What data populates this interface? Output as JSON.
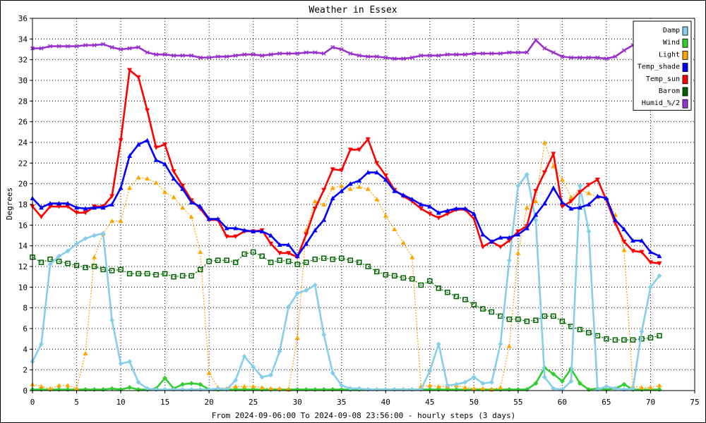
{
  "chart_data": {
    "type": "line",
    "title": "Weather in Essex",
    "ylabel": "Degrees",
    "xlabel": "From 2024-09-06:00 To 2024-09-08 23:56:00 - hourly steps (3 days)",
    "xlim": [
      0,
      75
    ],
    "ylim": [
      0,
      36
    ],
    "x_ticks": [
      0,
      5,
      10,
      15,
      20,
      25,
      30,
      35,
      40,
      45,
      50,
      55,
      60,
      65,
      70,
      75
    ],
    "y_ticks": [
      0,
      2,
      4,
      6,
      8,
      10,
      12,
      14,
      16,
      18,
      20,
      22,
      24,
      26,
      28,
      30,
      32,
      34,
      36
    ],
    "grid": true,
    "legend_position": "top-right",
    "series": [
      {
        "name": "Damp",
        "color": "#87ceeb",
        "marker": "diamond",
        "line": "solid",
        "values": [
          2.8,
          4.5,
          12.2,
          13.0,
          13.5,
          14.2,
          14.7,
          15.0,
          15.2,
          6.8,
          2.6,
          2.8,
          0.8,
          0.2,
          0.1,
          0.1,
          0.1,
          0.1,
          0.1,
          0.1,
          0.1,
          0.2,
          0.1,
          1.0,
          3.3,
          2.3,
          1.3,
          1.5,
          3.8,
          8.1,
          9.4,
          9.7,
          10.2,
          5.4,
          1.7,
          0.5,
          0.2,
          0.2,
          0.1,
          0.1,
          0.1,
          0.1,
          0.1,
          0.1,
          0.1,
          1.9,
          4.5,
          0.5,
          0.6,
          0.8,
          1.3,
          0.7,
          0.8,
          4.5,
          12.6,
          19.8,
          20.9,
          16.5,
          1.3,
          0.2,
          0.1,
          0.9,
          19.8,
          15.4,
          0.1,
          0.4,
          0.2,
          0.1,
          0.2,
          5.7,
          10.0,
          11.1
        ]
      },
      {
        "name": "Wind",
        "color": "#32cd32",
        "marker": "diamond",
        "line": "solid",
        "values": [
          0.1,
          0.1,
          0.1,
          0.1,
          0.1,
          0.1,
          0.1,
          0.1,
          0.1,
          0.2,
          0.1,
          0.3,
          0.1,
          0.1,
          0.2,
          1.2,
          0.2,
          0.6,
          0.7,
          0.6,
          0.1,
          0.1,
          0.1,
          0.1,
          0.1,
          0.1,
          0.1,
          0.1,
          0.1,
          0.1,
          0.1,
          0.1,
          0.1,
          0.1,
          0.1,
          0.1,
          0.1,
          0.1,
          0.1,
          0.1,
          0.1,
          0.1,
          0.1,
          0.1,
          0.1,
          0.1,
          0.1,
          0.1,
          0.1,
          0.1,
          0.1,
          0.1,
          0.1,
          0.1,
          0.1,
          0.1,
          0.1,
          0.7,
          2.2,
          1.6,
          0.9,
          2.1,
          0.7,
          0.1,
          0.2,
          0.1,
          0.2,
          0.6,
          0.1,
          0.1,
          0.1,
          0.1
        ]
      },
      {
        "name": "Light",
        "color": "#ffa500",
        "marker": "triangle-up",
        "line": "dotted",
        "values": [
          0.6,
          0.4,
          0.2,
          0.5,
          0.5,
          0.2,
          3.6,
          12.9,
          15.2,
          16.4,
          16.4,
          19.6,
          20.6,
          20.5,
          20.1,
          19.2,
          18.7,
          17.7,
          16.8,
          13.4,
          1.7,
          0.3,
          0.2,
          0.4,
          0.4,
          0.4,
          0.3,
          0.2,
          0.2,
          0.1,
          5.1,
          15.5,
          18.3,
          18.0,
          19.6,
          19.8,
          19.5,
          19.7,
          19.5,
          18.5,
          16.9,
          15.6,
          14.3,
          12.9,
          0.4,
          0.5,
          0.4,
          0.4,
          0.5,
          0.3,
          0.2,
          0.2,
          0.1,
          0.3,
          4.3,
          13.3,
          17.7,
          18.3,
          24.0,
          21.7,
          20.4,
          18.7,
          19.4,
          19.1,
          18.7,
          18.6,
          17.0,
          13.6,
          0.4,
          0.3,
          0.3,
          0.5
        ]
      },
      {
        "name": "Temp_shade",
        "color": "#0000ff",
        "marker": "triangle-up",
        "line": "solid",
        "values": [
          18.6,
          17.7,
          18.1,
          18.1,
          18.1,
          17.7,
          17.6,
          17.7,
          17.7,
          18.0,
          19.6,
          22.7,
          23.8,
          24.2,
          22.3,
          21.9,
          20.5,
          19.5,
          18.2,
          17.8,
          16.6,
          16.6,
          15.7,
          15.7,
          15.5,
          15.4,
          15.4,
          15.0,
          14.1,
          14.1,
          13.0,
          14.2,
          15.5,
          16.5,
          18.6,
          19.3,
          20.0,
          20.3,
          21.1,
          21.1,
          20.4,
          19.3,
          18.9,
          18.5,
          18.0,
          17.8,
          17.2,
          17.4,
          17.6,
          17.6,
          17.1,
          15.1,
          14.4,
          14.8,
          14.8,
          15.1,
          15.7,
          17.0,
          18.1,
          19.6,
          18.2,
          17.6,
          17.7,
          18.0,
          18.8,
          18.6,
          16.5,
          15.6,
          14.5,
          14.5,
          13.4,
          13.0
        ]
      },
      {
        "name": "Temp_sun",
        "color": "#ff0000",
        "marker": "triangle-down",
        "line": "solid",
        "values": [
          17.8,
          16.8,
          17.8,
          17.8,
          17.8,
          17.2,
          17.2,
          17.8,
          17.8,
          18.8,
          24.2,
          31.0,
          30.3,
          27.1,
          23.5,
          23.8,
          21.2,
          19.8,
          18.4,
          17.6,
          16.5,
          16.5,
          14.9,
          14.9,
          15.4,
          15.4,
          15.5,
          14.2,
          13.3,
          13.3,
          12.9,
          15.1,
          17.6,
          19.4,
          21.4,
          21.3,
          23.3,
          23.3,
          24.3,
          22.0,
          20.8,
          19.4,
          18.8,
          18.3,
          17.6,
          17.1,
          16.7,
          17.1,
          17.5,
          17.5,
          16.6,
          13.9,
          14.4,
          13.9,
          14.5,
          15.4,
          15.9,
          19.3,
          21.1,
          22.9,
          17.8,
          18.3,
          19.2,
          19.9,
          20.4,
          18.4,
          16.2,
          14.4,
          13.5,
          13.4,
          12.4,
          12.3
        ]
      },
      {
        "name": "Barom",
        "color": "#006400",
        "marker": "square",
        "line": "dotted",
        "values": [
          12.9,
          12.4,
          12.7,
          12.5,
          12.3,
          12.1,
          11.9,
          12.0,
          11.7,
          11.6,
          11.7,
          11.3,
          11.3,
          11.3,
          11.2,
          11.3,
          11.0,
          11.1,
          11.1,
          11.7,
          12.5,
          12.6,
          12.6,
          12.4,
          13.2,
          13.4,
          13.0,
          12.4,
          12.6,
          12.5,
          12.2,
          12.4,
          12.7,
          12.8,
          12.7,
          12.8,
          12.6,
          12.4,
          12.0,
          11.5,
          11.2,
          11.1,
          10.9,
          10.8,
          10.2,
          10.6,
          9.9,
          9.5,
          9.1,
          8.8,
          8.3,
          7.9,
          7.6,
          7.2,
          6.9,
          6.9,
          6.7,
          6.8,
          7.2,
          7.2,
          6.7,
          6.2,
          5.9,
          5.6,
          5.3,
          5.0,
          4.9,
          4.9,
          4.9,
          5.0,
          5.1,
          5.3
        ]
      },
      {
        "name": "Humid_%/2",
        "color": "#9932cc",
        "marker": "x",
        "line": "solid",
        "values": [
          33.1,
          33.1,
          33.3,
          33.3,
          33.3,
          33.3,
          33.4,
          33.4,
          33.5,
          33.2,
          33.0,
          33.1,
          33.2,
          32.7,
          32.5,
          32.5,
          32.4,
          32.4,
          32.4,
          32.2,
          32.2,
          32.3,
          32.3,
          32.4,
          32.5,
          32.5,
          32.4,
          32.5,
          32.6,
          32.6,
          32.6,
          32.7,
          32.7,
          32.6,
          33.2,
          33.0,
          32.6,
          32.4,
          32.3,
          32.3,
          32.2,
          32.1,
          32.1,
          32.2,
          32.4,
          32.4,
          32.4,
          32.5,
          32.5,
          32.5,
          32.6,
          32.6,
          32.6,
          32.6,
          32.7,
          32.7,
          32.7,
          33.9,
          33.1,
          32.7,
          32.3,
          32.2,
          32.2,
          32.2,
          32.2,
          32.1,
          32.3,
          32.9,
          33.4,
          34.0,
          34.3,
          34.1
        ]
      }
    ]
  }
}
